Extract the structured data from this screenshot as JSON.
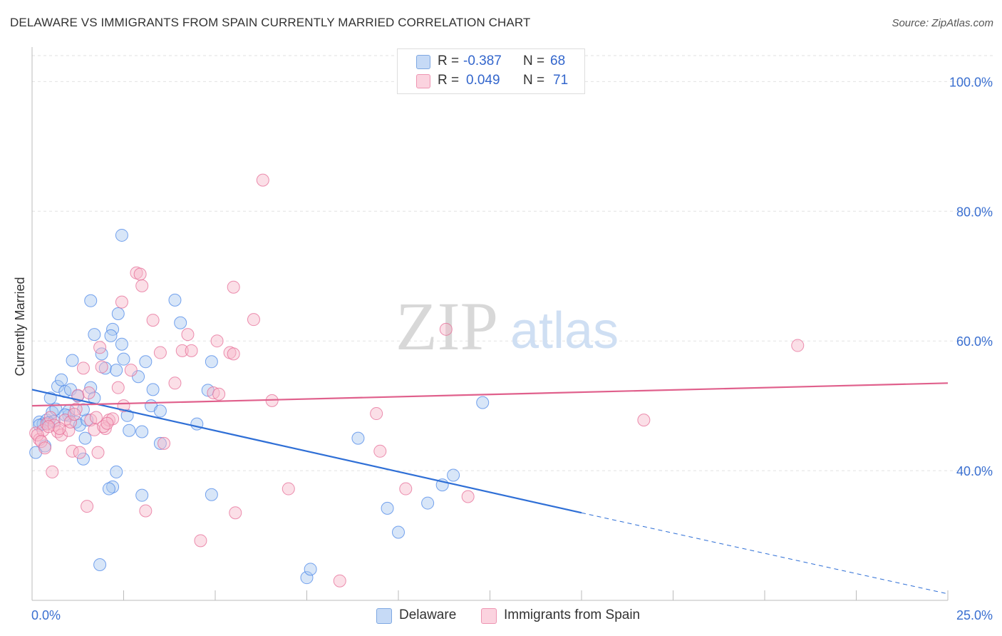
{
  "header": {
    "title": "DELAWARE VS IMMIGRANTS FROM SPAIN CURRENTLY MARRIED CORRELATION CHART",
    "source": "Source: ZipAtlas.com"
  },
  "watermark": {
    "zip": "ZIP",
    "atlas": "atlas"
  },
  "legend": {
    "rows": [
      {
        "r_label": "R =",
        "r_value": "-0.387",
        "n_label": "N =",
        "n_value": "68",
        "color": "#a9c7f0"
      },
      {
        "r_label": "R =",
        "r_value": "0.049",
        "n_label": "N =",
        "n_value": "71",
        "color": "#f6b7c9"
      }
    ]
  },
  "bottom_legend": {
    "items": [
      {
        "label": "Delaware",
        "color": "#a9c7f0"
      },
      {
        "label": "Immigrants from Spain",
        "color": "#f6b7c9"
      }
    ]
  },
  "chart_data": {
    "type": "scatter",
    "title": "DELAWARE VS IMMIGRANTS FROM SPAIN CURRENTLY MARRIED CORRELATION CHART",
    "ylabel": "Currently Married",
    "xlim": [
      0,
      25
    ],
    "ylim": [
      20,
      104
    ],
    "x_tick_labels": [
      "0.0%",
      "25.0%"
    ],
    "y_ticks": [
      40,
      60,
      80,
      100
    ],
    "y_tick_labels": [
      "40.0%",
      "60.0%",
      "80.0%",
      "100.0%"
    ],
    "grid": true,
    "legend_position": "top-center",
    "series": [
      {
        "name": "Delaware",
        "color": "#4a86e8",
        "fill": "#a9c7f0",
        "trend": {
          "x0": 0,
          "y0": 52.5,
          "x1": 15,
          "y1": 33.5,
          "dash_to_x": 25,
          "dash_to_y": 21
        },
        "points": [
          [
            0.1,
            42.8
          ],
          [
            0.2,
            47.5
          ],
          [
            0.3,
            47.2
          ],
          [
            0.35,
            43.8
          ],
          [
            0.4,
            47.8
          ],
          [
            0.5,
            51.2
          ],
          [
            0.55,
            49
          ],
          [
            0.65,
            49.5
          ],
          [
            0.7,
            53
          ],
          [
            0.8,
            54
          ],
          [
            0.9,
            52.2
          ],
          [
            1.0,
            48.5
          ],
          [
            1.05,
            52.5
          ],
          [
            1.1,
            57
          ],
          [
            1.2,
            47.5
          ],
          [
            1.25,
            51.5
          ],
          [
            1.3,
            47
          ],
          [
            1.4,
            41.8
          ],
          [
            1.45,
            45
          ],
          [
            1.5,
            47.8
          ],
          [
            1.6,
            52.8
          ],
          [
            1.7,
            51.2
          ],
          [
            1.6,
            66.2
          ],
          [
            1.7,
            61
          ],
          [
            1.9,
            58
          ],
          [
            2.0,
            55.8
          ],
          [
            2.2,
            61.8
          ],
          [
            2.15,
            60.8
          ],
          [
            2.3,
            55.5
          ],
          [
            2.35,
            64.2
          ],
          [
            2.45,
            59.5
          ],
          [
            2.5,
            57.2
          ],
          [
            2.6,
            48.5
          ],
          [
            2.65,
            46.2
          ],
          [
            2.45,
            76.3
          ],
          [
            2.9,
            54.5
          ],
          [
            3.0,
            46
          ],
          [
            3.1,
            56.8
          ],
          [
            3.3,
            52.5
          ],
          [
            3.25,
            50
          ],
          [
            3.5,
            49.2
          ],
          [
            3.5,
            44.2
          ],
          [
            3.9,
            66.3
          ],
          [
            4.05,
            62.8
          ],
          [
            4.5,
            47.2
          ],
          [
            4.9,
            36.3
          ],
          [
            4.8,
            52.4
          ],
          [
            4.9,
            56.8
          ],
          [
            2.2,
            37.5
          ],
          [
            2.1,
            37.2
          ],
          [
            2.3,
            39.8
          ],
          [
            3.0,
            36.2
          ],
          [
            1.85,
            25.5
          ],
          [
            7.5,
            23.5
          ],
          [
            7.6,
            24.8
          ],
          [
            8.9,
            45
          ],
          [
            9.7,
            34.2
          ],
          [
            10.0,
            30.5
          ],
          [
            10.8,
            35
          ],
          [
            11.2,
            37.8
          ],
          [
            11.5,
            39.3
          ],
          [
            12.3,
            50.5
          ],
          [
            0.2,
            47
          ],
          [
            0.45,
            47.4
          ],
          [
            1.0,
            49.2
          ],
          [
            1.4,
            49.4
          ],
          [
            0.9,
            48.6
          ],
          [
            0.6,
            47.6
          ]
        ]
      },
      {
        "name": "Immigrants from Spain",
        "color": "#e56b96",
        "fill": "#f6b7c9",
        "trend": {
          "x0": 0,
          "y0": 50,
          "x1": 25,
          "y1": 53.5
        },
        "points": [
          [
            0.1,
            45.8
          ],
          [
            0.2,
            44.8
          ],
          [
            0.3,
            46.2
          ],
          [
            0.4,
            47.2
          ],
          [
            0.5,
            48.2
          ],
          [
            0.55,
            39.8
          ],
          [
            0.6,
            47
          ],
          [
            0.7,
            46
          ],
          [
            0.8,
            45.5
          ],
          [
            0.9,
            47.8
          ],
          [
            1.0,
            46.2
          ],
          [
            1.1,
            43
          ],
          [
            1.2,
            49.5
          ],
          [
            1.3,
            42.8
          ],
          [
            1.4,
            55.8
          ],
          [
            1.5,
            34.5
          ],
          [
            1.6,
            47.8
          ],
          [
            1.7,
            46.3
          ],
          [
            1.8,
            42.8
          ],
          [
            1.85,
            59
          ],
          [
            1.9,
            56
          ],
          [
            2.0,
            46.5
          ],
          [
            2.1,
            47.8
          ],
          [
            2.2,
            48
          ],
          [
            2.35,
            52.8
          ],
          [
            2.45,
            66
          ],
          [
            2.5,
            50
          ],
          [
            2.7,
            55.5
          ],
          [
            2.85,
            70.5
          ],
          [
            2.95,
            70.3
          ],
          [
            3.0,
            68.5
          ],
          [
            3.1,
            33.8
          ],
          [
            3.3,
            63.2
          ],
          [
            3.5,
            58.2
          ],
          [
            3.6,
            44.2
          ],
          [
            3.9,
            53.5
          ],
          [
            4.1,
            58.5
          ],
          [
            4.25,
            61
          ],
          [
            4.35,
            58.5
          ],
          [
            4.6,
            29.2
          ],
          [
            4.95,
            52
          ],
          [
            5.1,
            51.8
          ],
          [
            5.05,
            60
          ],
          [
            5.4,
            58.2
          ],
          [
            5.5,
            58
          ],
          [
            5.5,
            68.3
          ],
          [
            5.55,
            33.5
          ],
          [
            6.05,
            63.3
          ],
          [
            6.3,
            84.8
          ],
          [
            6.55,
            50.8
          ],
          [
            7.0,
            37.2
          ],
          [
            8.4,
            23
          ],
          [
            9.4,
            48.8
          ],
          [
            9.5,
            43
          ],
          [
            10.2,
            37.2
          ],
          [
            11.3,
            61.8
          ],
          [
            11.9,
            36
          ],
          [
            16.7,
            47.8
          ],
          [
            20.9,
            59.3
          ],
          [
            0.15,
            45.5
          ],
          [
            0.25,
            44.5
          ],
          [
            0.35,
            43.5
          ],
          [
            0.45,
            46.8
          ],
          [
            0.75,
            46.5
          ],
          [
            1.05,
            47.5
          ],
          [
            1.25,
            51.6
          ],
          [
            1.55,
            52
          ],
          [
            1.75,
            48.2
          ],
          [
            1.95,
            46.8
          ],
          [
            2.05,
            47.3
          ],
          [
            1.15,
            48.7
          ]
        ]
      }
    ]
  }
}
